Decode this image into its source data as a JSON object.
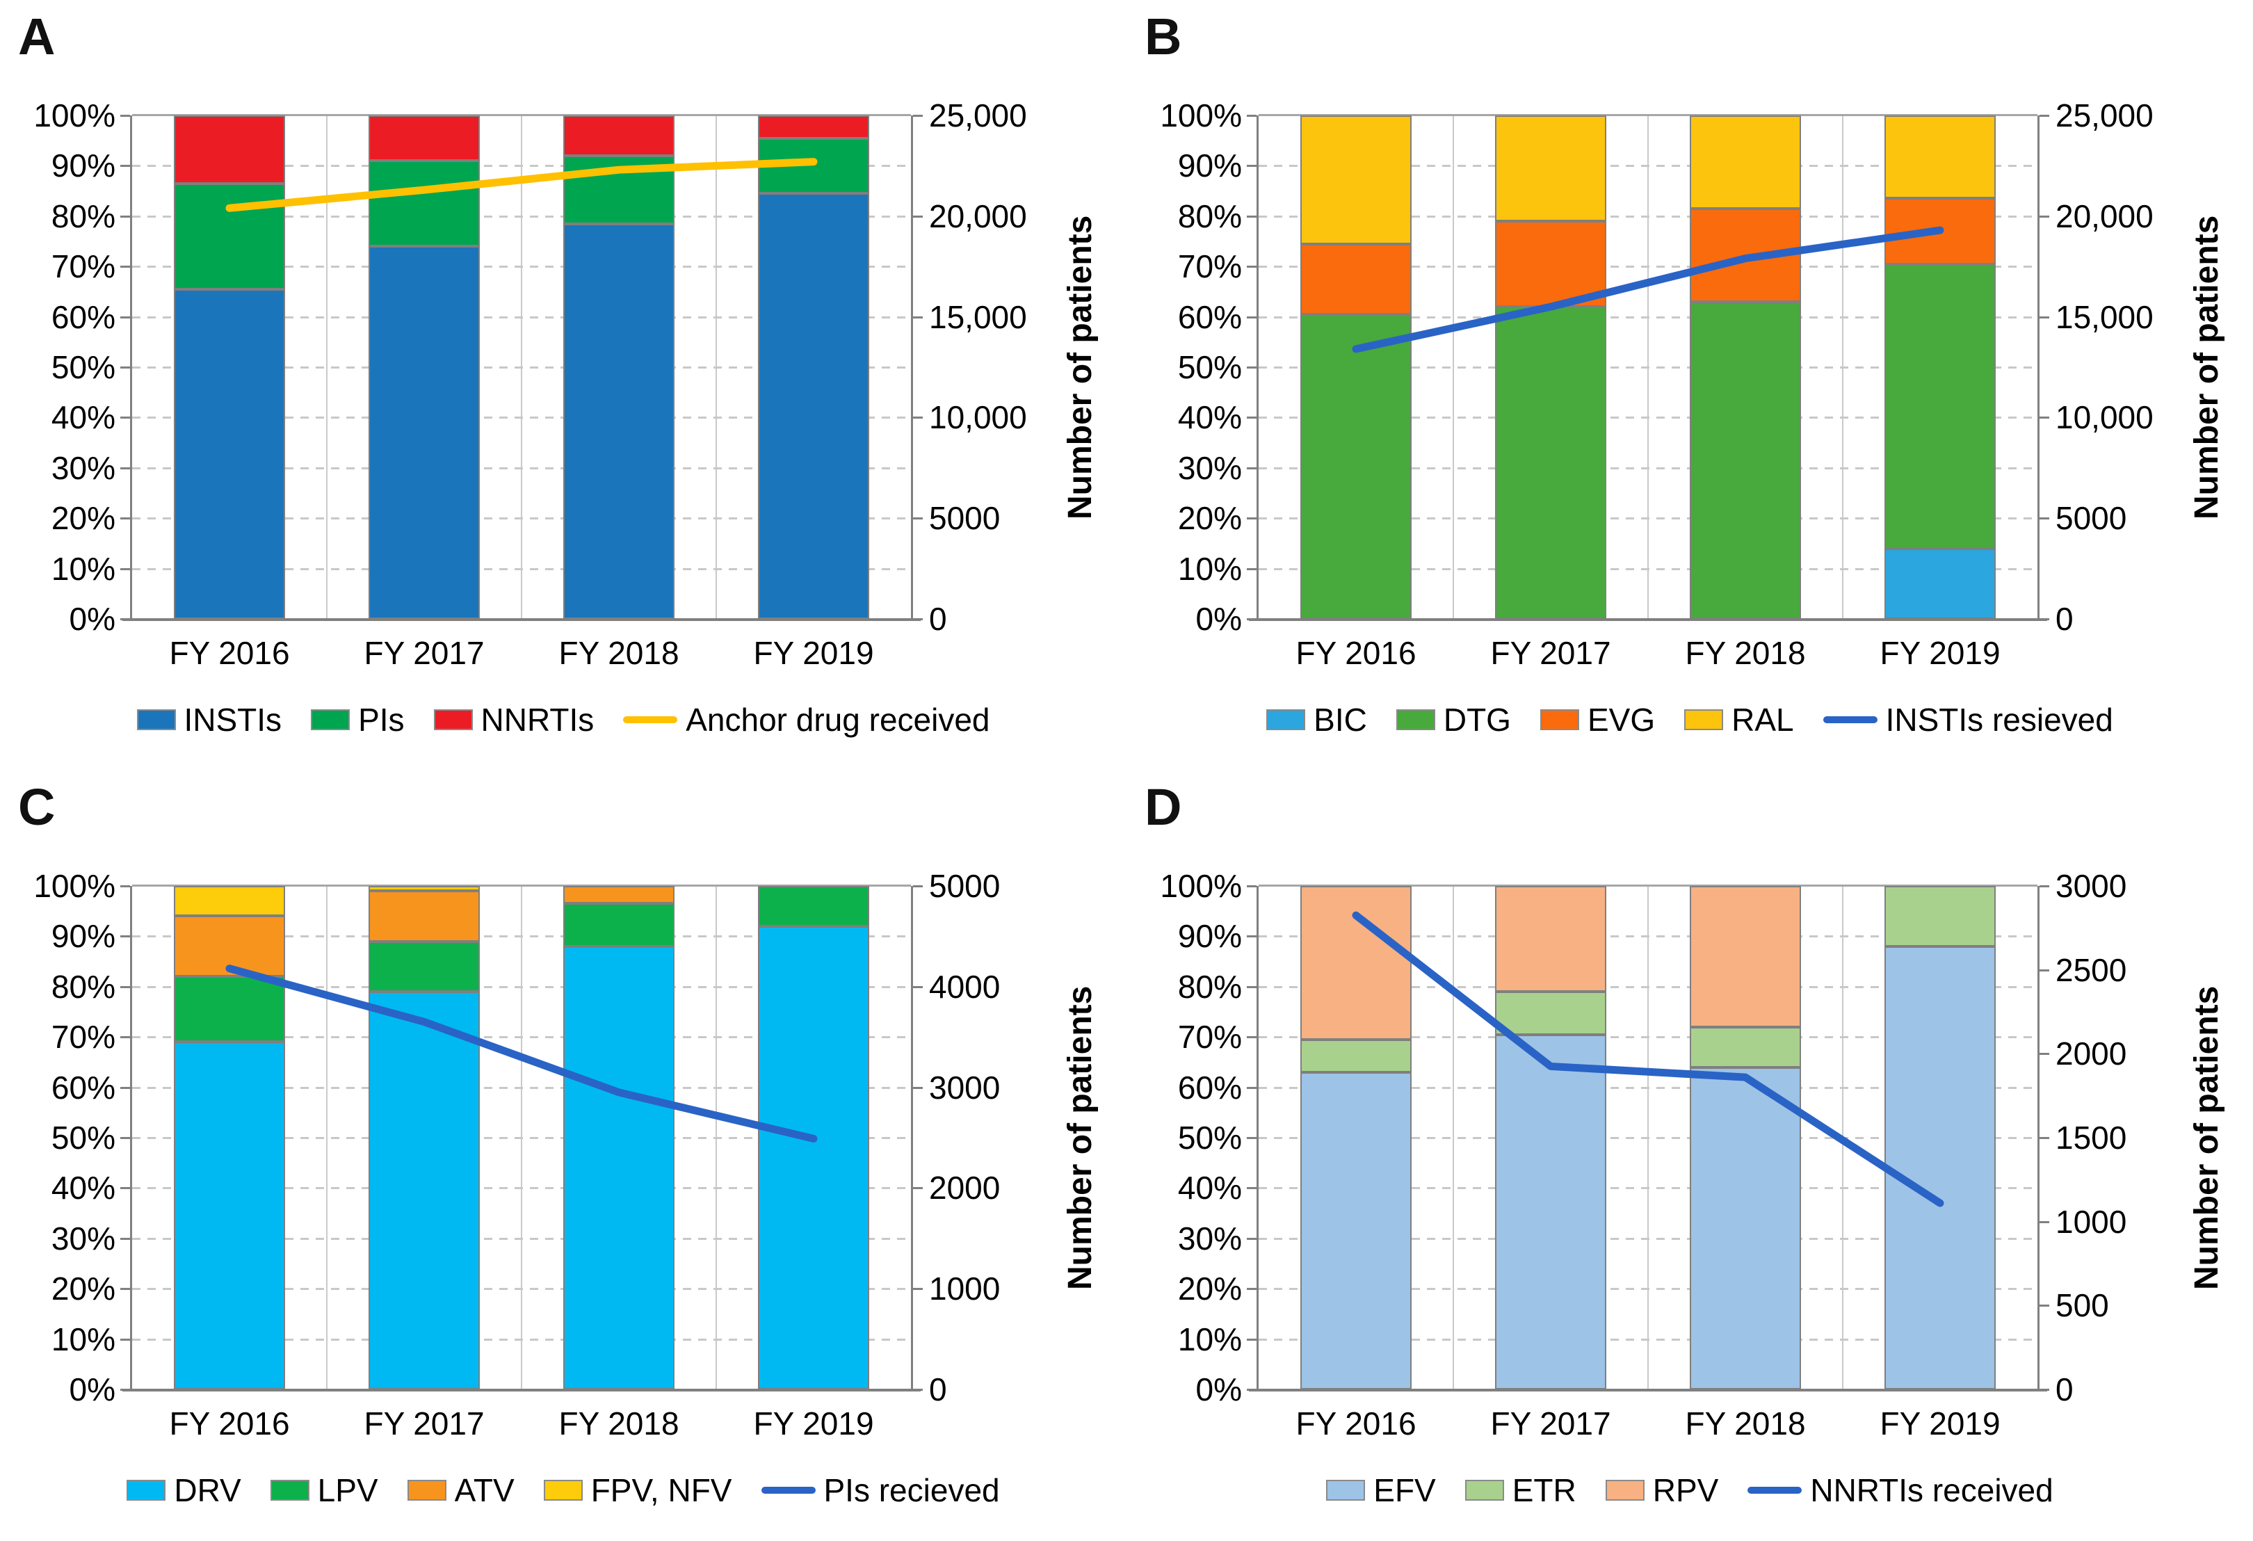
{
  "figure": {
    "right_axis_title": "Number of patients",
    "left_axis_ticks": [
      "100%",
      "90%",
      "80%",
      "70%",
      "60%",
      "50%",
      "40%",
      "30%",
      "20%",
      "10%",
      "0%"
    ],
    "grid_color": "#c8c8c8",
    "axis_color": "#808080"
  },
  "chart_data": [
    {
      "type": "bar",
      "panel_label": "A",
      "subtype": "stacked-percent-bars-with-line",
      "categories": [
        "FY 2016",
        "FY 2017",
        "FY 2018",
        "FY 2019"
      ],
      "series": [
        {
          "name": "INSTIs",
          "color": "#1b75bb",
          "values": [
            65.5,
            74.0,
            78.5,
            84.5
          ]
        },
        {
          "name": "PIs",
          "color": "#00a550",
          "values": [
            21.0,
            17.0,
            13.5,
            11.0
          ]
        },
        {
          "name": "NNRTIs",
          "color": "#ec1c24",
          "values": [
            13.5,
            9.0,
            8.0,
            4.5
          ]
        }
      ],
      "line": {
        "name": "Anchor drug received",
        "color": "#ffc000",
        "values": [
          20400,
          21300,
          22300,
          22700
        ]
      },
      "left_axis": {
        "min": 0,
        "max": 100,
        "unit": "%"
      },
      "right_axis": {
        "title": "Number of patients",
        "min": 0,
        "max": 25000,
        "ticks": [
          "25,000",
          "20,000",
          "15,000",
          "10,000",
          "5000",
          "0"
        ]
      },
      "grid": true,
      "legend_position": "bottom"
    },
    {
      "type": "bar",
      "panel_label": "B",
      "subtype": "stacked-percent-bars-with-line",
      "categories": [
        "FY 2016",
        "FY 2017",
        "FY 2018",
        "FY 2019"
      ],
      "series": [
        {
          "name": "BIC",
          "color": "#2ba6de",
          "values": [
            0,
            0,
            0,
            14.0
          ]
        },
        {
          "name": "DTG",
          "color": "#48a93c",
          "values": [
            60.5,
            62.0,
            63.0,
            56.5
          ]
        },
        {
          "name": "EVG",
          "color": "#f96b0c",
          "values": [
            14.0,
            17.0,
            18.5,
            13.0
          ]
        },
        {
          "name": "RAL",
          "color": "#fdc40d",
          "values": [
            25.5,
            21.0,
            18.5,
            16.5
          ]
        }
      ],
      "line": {
        "name": "INSTIs resieved",
        "color": "#2a63c6",
        "values": [
          13400,
          15500,
          17900,
          19300
        ]
      },
      "left_axis": {
        "min": 0,
        "max": 100,
        "unit": "%"
      },
      "right_axis": {
        "title": "Number of patients",
        "min": 0,
        "max": 25000,
        "ticks": [
          "25,000",
          "20,000",
          "15,000",
          "10,000",
          "5000",
          "0"
        ]
      },
      "grid": true,
      "legend_position": "bottom"
    },
    {
      "type": "bar",
      "panel_label": "C",
      "subtype": "stacked-percent-bars-with-line",
      "categories": [
        "FY 2016",
        "FY 2017",
        "FY 2018",
        "FY 2019"
      ],
      "series": [
        {
          "name": "DRV",
          "color": "#00b9f2",
          "values": [
            69.0,
            79.0,
            88.0,
            92.0
          ]
        },
        {
          "name": "LPV",
          "color": "#0cb14b",
          "values": [
            13.0,
            10.0,
            8.5,
            8.0
          ]
        },
        {
          "name": "ATV",
          "color": "#f7941e",
          "values": [
            12.0,
            10.0,
            3.5,
            0
          ]
        },
        {
          "name": "FPV, NFV",
          "color": "#fdcc0a",
          "values": [
            6.0,
            1.0,
            0,
            0
          ]
        }
      ],
      "line": {
        "name": "PIs recieved",
        "color": "#2a63c6",
        "values": [
          4180,
          3650,
          2950,
          2490
        ]
      },
      "left_axis": {
        "min": 0,
        "max": 100,
        "unit": "%"
      },
      "right_axis": {
        "title": "Number of patients",
        "min": 0,
        "max": 5000,
        "ticks": [
          "5000",
          "4000",
          "3000",
          "2000",
          "1000",
          "0"
        ]
      },
      "grid": true,
      "legend_position": "bottom"
    },
    {
      "type": "bar",
      "panel_label": "D",
      "subtype": "stacked-percent-bars-with-line",
      "categories": [
        "FY 2016",
        "FY 2017",
        "FY 2018",
        "FY 2019"
      ],
      "series": [
        {
          "name": "EFV",
          "color": "#9dc3e6",
          "values": [
            63.0,
            70.5,
            64.0,
            88.0
          ]
        },
        {
          "name": "ETR",
          "color": "#a9d18e",
          "values": [
            6.5,
            8.5,
            8.0,
            12.0
          ]
        },
        {
          "name": "RPV",
          "color": "#f7b183",
          "values": [
            30.5,
            21.0,
            28.0,
            0
          ]
        }
      ],
      "line": {
        "name": "NNRTIs received",
        "color": "#2a63c6",
        "values": [
          2825,
          1925,
          1860,
          1110
        ]
      },
      "left_axis": {
        "min": 0,
        "max": 100,
        "unit": "%"
      },
      "right_axis": {
        "title": "Number of patients",
        "min": 0,
        "max": 3000,
        "ticks": [
          "3000",
          "2500",
          "2000",
          "1500",
          "1000",
          "500",
          "0"
        ]
      },
      "grid": true,
      "legend_position": "bottom"
    }
  ]
}
